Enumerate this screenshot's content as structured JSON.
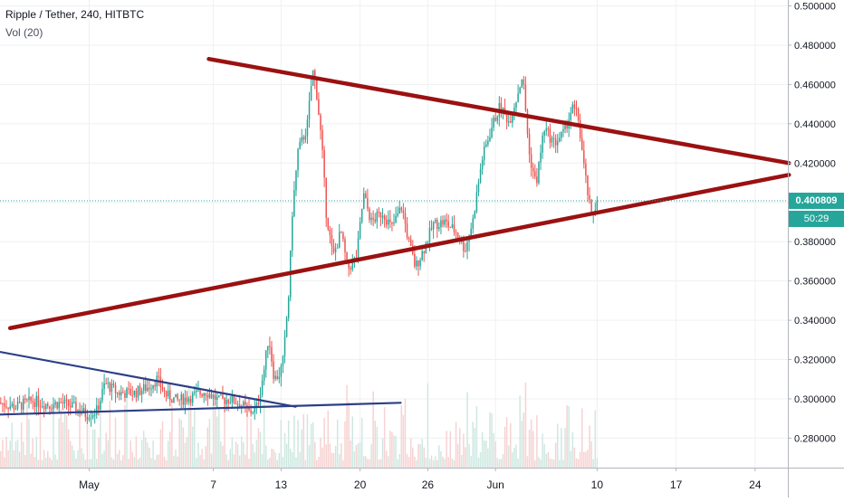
{
  "header": {
    "title": "Ripple / Tether, 240, HITBTC",
    "indicator": "Vol (20)"
  },
  "price_tag": {
    "price": "0.400809",
    "countdown": "50:29"
  },
  "colors": {
    "up": "#26a69a",
    "down": "#ef5350",
    "trend_red": "#9b1111",
    "trend_blue": "#2b3f87",
    "vol_up": "#cfe8e1",
    "vol_down": "#f6d3d2",
    "grid": "#eef0f3"
  },
  "chart_data": {
    "type": "candlestick",
    "symbol": "Ripple / Tether",
    "interval": "240",
    "exchange": "HITBTC",
    "ylim": [
      0.265,
      0.503
    ],
    "y_ticks": [
      "0.500000",
      "0.480000",
      "0.460000",
      "0.440000",
      "0.420000",
      "0.400000",
      "0.380000",
      "0.360000",
      "0.340000",
      "0.320000",
      "0.300000",
      "0.280000"
    ],
    "x_ticks": [
      {
        "day": -4,
        "label": "May"
      },
      {
        "day": 7,
        "label": "7"
      },
      {
        "day": 13,
        "label": "13"
      },
      {
        "day": 20,
        "label": "20"
      },
      {
        "day": 26,
        "label": "26"
      },
      {
        "day": 32,
        "label": "Jun"
      },
      {
        "day": 41,
        "label": "10"
      },
      {
        "day": 48,
        "label": "17"
      },
      {
        "day": 55,
        "label": "24"
      }
    ],
    "x_range_days": [
      -11.9,
      57.9
    ],
    "last_price": 0.400809,
    "close_path": [
      [
        -12.0,
        0.298
      ],
      [
        -10.5,
        0.296
      ],
      [
        -9.0,
        0.299
      ],
      [
        -7.5,
        0.297
      ],
      [
        -6.5,
        0.298
      ],
      [
        -5.5,
        0.296
      ],
      [
        -4.2,
        0.292
      ],
      [
        -3.3,
        0.294
      ],
      [
        -2.6,
        0.308
      ],
      [
        -1.5,
        0.303
      ],
      [
        0.0,
        0.303
      ],
      [
        1.2,
        0.306
      ],
      [
        2.0,
        0.31
      ],
      [
        2.8,
        0.302
      ],
      [
        3.8,
        0.299
      ],
      [
        5.0,
        0.301
      ],
      [
        6.3,
        0.304
      ],
      [
        7.5,
        0.299
      ],
      [
        8.5,
        0.3
      ],
      [
        9.5,
        0.297
      ],
      [
        10.2,
        0.293
      ],
      [
        10.9,
        0.296
      ],
      [
        11.5,
        0.315
      ],
      [
        11.9,
        0.332
      ],
      [
        12.4,
        0.31
      ],
      [
        12.9,
        0.313
      ],
      [
        13.2,
        0.32
      ],
      [
        13.7,
        0.355
      ],
      [
        14.0,
        0.395
      ],
      [
        14.5,
        0.426
      ],
      [
        15.3,
        0.438
      ],
      [
        15.8,
        0.467
      ],
      [
        16.1,
        0.459
      ],
      [
        16.6,
        0.43
      ],
      [
        17.0,
        0.395
      ],
      [
        17.6,
        0.372
      ],
      [
        18.3,
        0.385
      ],
      [
        18.9,
        0.366
      ],
      [
        19.7,
        0.372
      ],
      [
        20.3,
        0.404
      ],
      [
        21.0,
        0.39
      ],
      [
        22.0,
        0.395
      ],
      [
        22.8,
        0.387
      ],
      [
        23.7,
        0.398
      ],
      [
        24.3,
        0.38
      ],
      [
        24.9,
        0.367
      ],
      [
        25.7,
        0.377
      ],
      [
        26.5,
        0.389
      ],
      [
        27.5,
        0.39
      ],
      [
        28.5,
        0.385
      ],
      [
        29.3,
        0.376
      ],
      [
        30.0,
        0.391
      ],
      [
        30.8,
        0.422
      ],
      [
        31.7,
        0.439
      ],
      [
        32.4,
        0.449
      ],
      [
        33.2,
        0.441
      ],
      [
        33.8,
        0.452
      ],
      [
        34.4,
        0.465
      ],
      [
        35.0,
        0.424
      ],
      [
        35.6,
        0.409
      ],
      [
        36.3,
        0.438
      ],
      [
        37.2,
        0.43
      ],
      [
        38.0,
        0.435
      ],
      [
        38.8,
        0.448
      ],
      [
        39.3,
        0.444
      ],
      [
        39.9,
        0.415
      ],
      [
        40.5,
        0.392
      ],
      [
        41.0,
        0.400809
      ]
    ],
    "trendlines": [
      {
        "color": "trend_red",
        "from": [
          -11.0,
          0.336
        ],
        "to": [
          6.6,
          0.473
        ],
        "ext_to": [
          58.0,
          0.42
        ],
        "kind": "upper"
      },
      {
        "color": "trend_red",
        "from": [
          -11.0,
          0.336
        ],
        "to": [
          58.0,
          0.414
        ],
        "kind": "lower"
      },
      {
        "color": "trend_blue",
        "from": [
          -12.0,
          0.324
        ],
        "to": [
          14.3,
          0.296
        ],
        "kind": "upper"
      },
      {
        "color": "trend_blue",
        "from": [
          -12.0,
          0.292
        ],
        "to": [
          23.6,
          0.298
        ],
        "kind": "lower"
      }
    ]
  }
}
